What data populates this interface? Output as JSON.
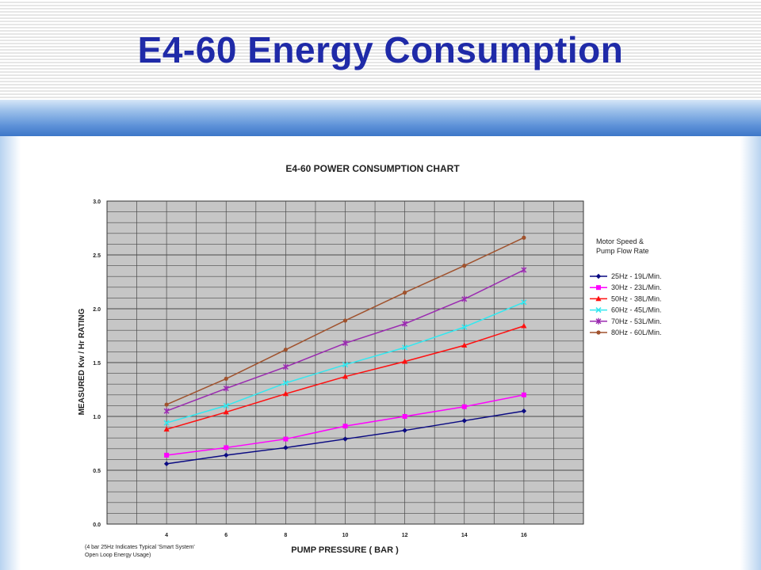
{
  "slide": {
    "title": "E4-60 Energy Consumption"
  },
  "chart_data": {
    "type": "line",
    "title": "E4-60 POWER CONSUMPTION CHART",
    "xlabel": "PUMP PRESSURE ( BAR )",
    "ylabel": "MEASURED Kw / Hr RATING",
    "xlim": [
      2,
      18
    ],
    "ylim": [
      0,
      3.0
    ],
    "x_ticks": [
      "4",
      "6",
      "8",
      "10",
      "12",
      "14",
      "16"
    ],
    "y_ticks": [
      "0.0",
      "0.5",
      "1.0",
      "1.5",
      "2.0",
      "2.5",
      "3.0"
    ],
    "grid": true,
    "legend_title": [
      "Motor Speed &",
      "Pump Flow Rate"
    ],
    "legend_position": "right",
    "footnote": [
      "(4 bar 25Hz Indicates Typical 'Smart System'",
      "Open Loop Energy Usage)"
    ],
    "x": [
      4,
      6,
      8,
      10,
      12,
      14,
      16
    ],
    "series": [
      {
        "name": "25Hz - 19L/Min.",
        "color": "#0a0a82",
        "marker": "diamond",
        "values": [
          0.56,
          0.64,
          0.71,
          0.79,
          0.87,
          0.96,
          1.05
        ]
      },
      {
        "name": "30Hz - 23L/Min.",
        "color": "#ff00ff",
        "marker": "square",
        "values": [
          0.64,
          0.71,
          0.79,
          0.91,
          1.0,
          1.09,
          1.2
        ]
      },
      {
        "name": "50Hz - 38L/Min.",
        "color": "#ff1010",
        "marker": "triangle",
        "values": [
          0.88,
          1.04,
          1.21,
          1.37,
          1.51,
          1.66,
          1.84
        ]
      },
      {
        "name": "60Hz - 45L/Min.",
        "color": "#33e8f0",
        "marker": "x",
        "values": [
          0.94,
          1.1,
          1.31,
          1.48,
          1.64,
          1.83,
          2.06
        ]
      },
      {
        "name": "70Hz - 53L/Min.",
        "color": "#9a2ab0",
        "marker": "star",
        "values": [
          1.05,
          1.26,
          1.46,
          1.68,
          1.86,
          2.09,
          2.36
        ]
      },
      {
        "name": "80Hz - 60L/Min.",
        "color": "#a0522d",
        "marker": "circle",
        "values": [
          1.11,
          1.35,
          1.62,
          1.89,
          2.15,
          2.4,
          2.66
        ]
      }
    ]
  }
}
